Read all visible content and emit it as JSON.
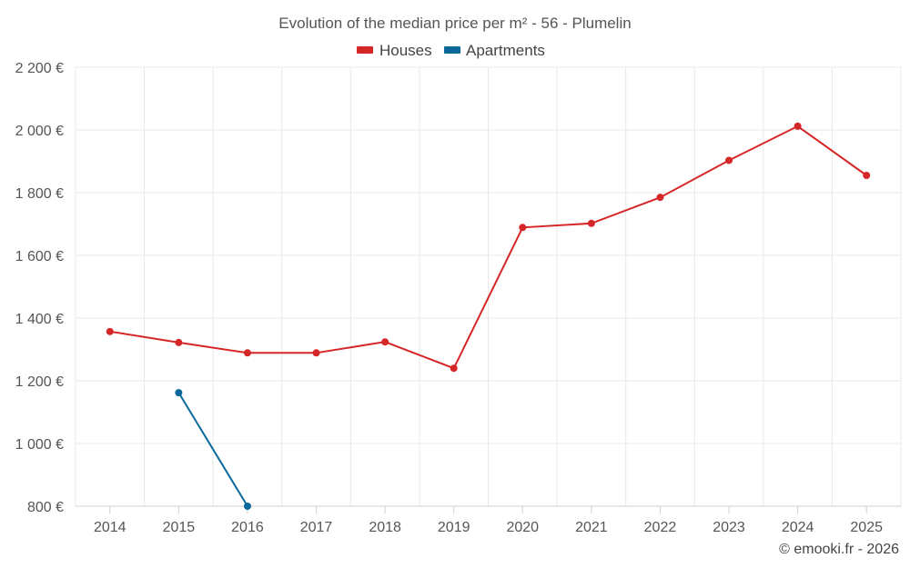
{
  "chart_data": {
    "type": "line",
    "title": "Evolution of the median price per m² - 56 - Plumelin",
    "categories": [
      "2014",
      "2015",
      "2016",
      "2017",
      "2018",
      "2019",
      "2020",
      "2021",
      "2022",
      "2023",
      "2024",
      "2025"
    ],
    "y_ticks": [
      800,
      1000,
      1200,
      1400,
      1600,
      1800,
      2000,
      2200
    ],
    "y_tick_labels": [
      "800 €",
      "1 000 €",
      "1 200 €",
      "1 400 €",
      "1 600 €",
      "1 800 €",
      "2 000 €",
      "2 200 €"
    ],
    "ylim": [
      800,
      2200
    ],
    "grid": true,
    "legend_position": "top-center",
    "series": [
      {
        "name": "Houses",
        "color": "#d62728",
        "values": [
          1357,
          1322,
          1289,
          1289,
          1324,
          1240,
          1689,
          1702,
          1785,
          1903,
          2012,
          1855
        ]
      },
      {
        "name": "Apartments",
        "color": "#08689a",
        "values": [
          null,
          1162,
          800,
          null,
          null,
          null,
          null,
          null,
          null,
          null,
          null,
          null
        ]
      }
    ]
  },
  "credit": "© emooki.fr - 2026"
}
